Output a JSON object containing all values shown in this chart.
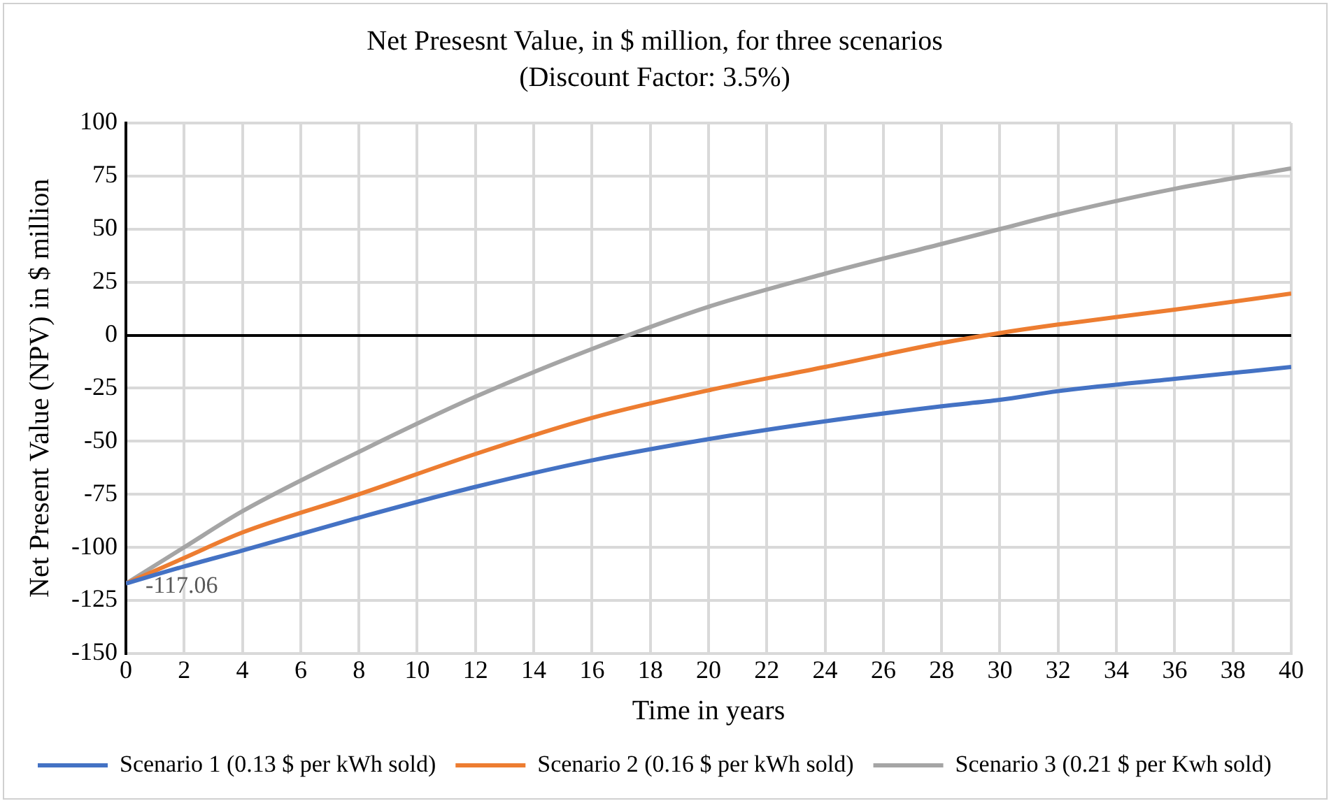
{
  "chart_data": {
    "type": "line",
    "title": "Net Presesnt Value, in $ million, for three scenarios",
    "subtitle": "(Discount Factor: 3.5%)",
    "xlabel": "Time in years",
    "ylabel": "Net Present Value (NPV) in $ million",
    "x": [
      0,
      2,
      4,
      8,
      12,
      16,
      20,
      24,
      28,
      30,
      32,
      36,
      40
    ],
    "series": [
      {
        "name": "Scenario 1 (0.13 $ per kWh sold)",
        "color": "#4472c4",
        "values": [
          -117.06,
          -109,
          -101.5,
          -86,
          -71.5,
          -59,
          -49,
          -40.6,
          -33.5,
          -30.5,
          -26.4,
          -20.6,
          -15
        ]
      },
      {
        "name": "Scenario 2 (0.16 $ per kWh sold)",
        "color": "#ed7d31",
        "values": [
          -117.06,
          -105,
          -93,
          -75,
          -56,
          -39,
          -26,
          -15,
          -3.7,
          1,
          5,
          12,
          19.6
        ]
      },
      {
        "name": "Scenario 3 (0.21 $ per Kwh sold)",
        "color": "#a5a5a5",
        "values": [
          -117.06,
          -100,
          -83,
          -55,
          -29,
          -6.5,
          13.4,
          29,
          43,
          50,
          57,
          69,
          78.6
        ]
      }
    ],
    "xlim": [
      0,
      40
    ],
    "xticks": [
      0,
      2,
      4,
      6,
      8,
      10,
      12,
      14,
      16,
      18,
      20,
      22,
      24,
      26,
      28,
      30,
      32,
      34,
      36,
      38,
      40
    ],
    "ylim": [
      -150,
      100
    ],
    "yticks": [
      -150,
      -125,
      -100,
      -75,
      -50,
      -25,
      0,
      25,
      50,
      75,
      100
    ],
    "grid": true,
    "legend": "bottom",
    "marker": "none",
    "line_style": "solid",
    "annotations": [
      {
        "text": "-117.06",
        "x": 0,
        "y": -117.06
      }
    ]
  }
}
